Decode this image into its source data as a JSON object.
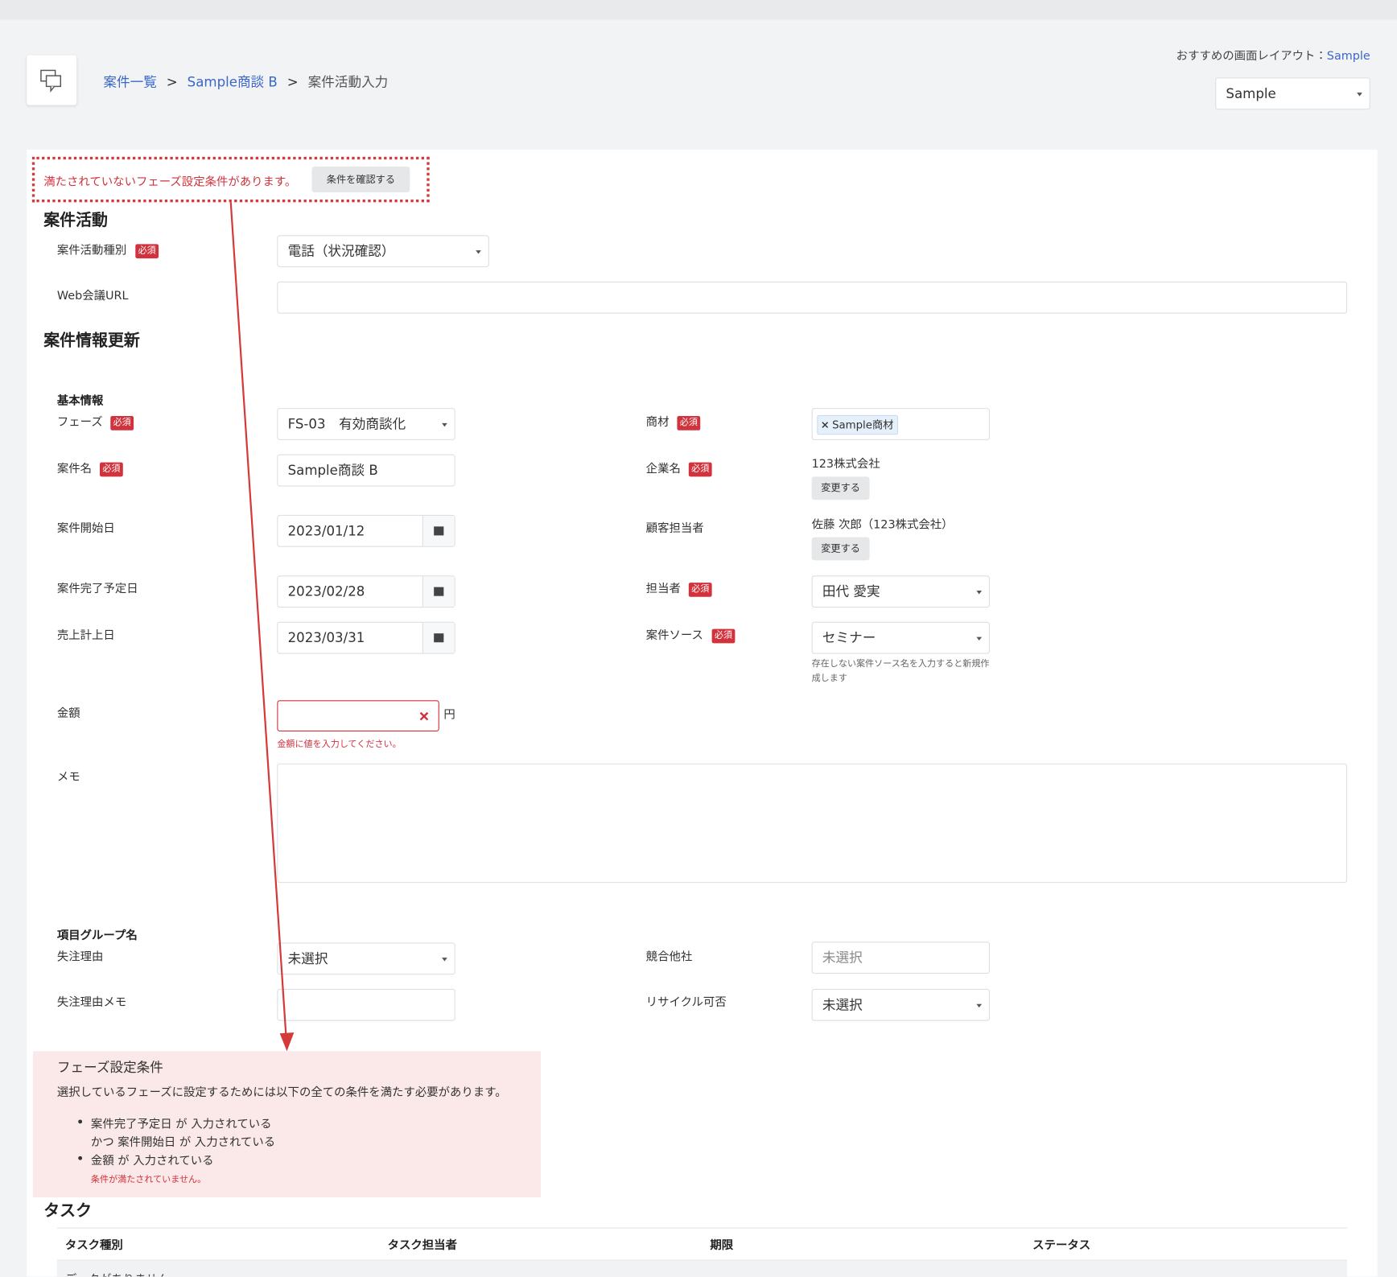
{
  "header": {
    "breadcrumb": [
      "案件一覧",
      "Sample商談 B",
      "案件活動入力"
    ],
    "separator": ">",
    "layout_label": "おすすめの画面レイアウト：",
    "layout_link": "Sample",
    "layout_select": "Sample"
  },
  "alert": {
    "message": "満たされていないフェーズ設定条件があります。",
    "button": "条件を確認する"
  },
  "required_label": "必須",
  "change_button": "変更する",
  "activity": {
    "heading": "案件活動",
    "fields": [
      {
        "label": "案件活動種別",
        "value": "電話（状況確認）"
      },
      {
        "label": "Web会議URL"
      }
    ]
  },
  "update": {
    "heading": "案件情報更新",
    "basic": {
      "heading": "基本情報",
      "left": [
        {
          "label": "フェーズ",
          "value": "FS-03　有効商談化"
        },
        {
          "label": "案件名",
          "value": "Sample商談 B"
        },
        {
          "label": "案件開始日",
          "value": "2023/01/12"
        },
        {
          "label": "案件完了予定日",
          "value": "2023/02/28"
        },
        {
          "label": "売上計上日",
          "value": "2023/03/31"
        },
        {
          "label": "金額",
          "unit": "円",
          "error": "金額に値を入力してください。"
        },
        {
          "label": "メモ"
        }
      ],
      "right": [
        {
          "label": "商材",
          "tag": "Sample商材"
        },
        {
          "label": "企業名",
          "value": "123株式会社"
        },
        {
          "label": "顧客担当者",
          "value": "佐藤 次郎（123株式会社）"
        },
        {
          "label": "担当者",
          "value": "田代 愛実"
        },
        {
          "label": "案件ソース",
          "value": "セミナー",
          "help": "存在しない案件ソース名を入力すると新規作成します"
        }
      ]
    },
    "group": {
      "heading": "項目グループ名",
      "left": [
        {
          "label": "失注理由",
          "value": "未選択"
        },
        {
          "label": "失注理由メモ"
        }
      ],
      "right": [
        {
          "label": "競合他社",
          "placeholder": "未選択"
        },
        {
          "label": "リサイクル可否",
          "value": "未選択"
        }
      ]
    }
  },
  "conditions": {
    "title": "フェーズ設定条件",
    "description": "選択しているフェーズに設定するためには以下の全ての条件を満たす必要があります。",
    "items": [
      [
        "案件完了予定日 が 入力されている",
        "かつ 案件開始日 が 入力されている"
      ],
      [
        "金額 が 入力されている"
      ]
    ],
    "error": "条件が満たされていません。"
  },
  "tasks": {
    "heading": "タスク",
    "columns": [
      "タスク種別",
      "タスク担当者",
      "期限",
      "ステータス"
    ],
    "empty": "データがありません"
  }
}
